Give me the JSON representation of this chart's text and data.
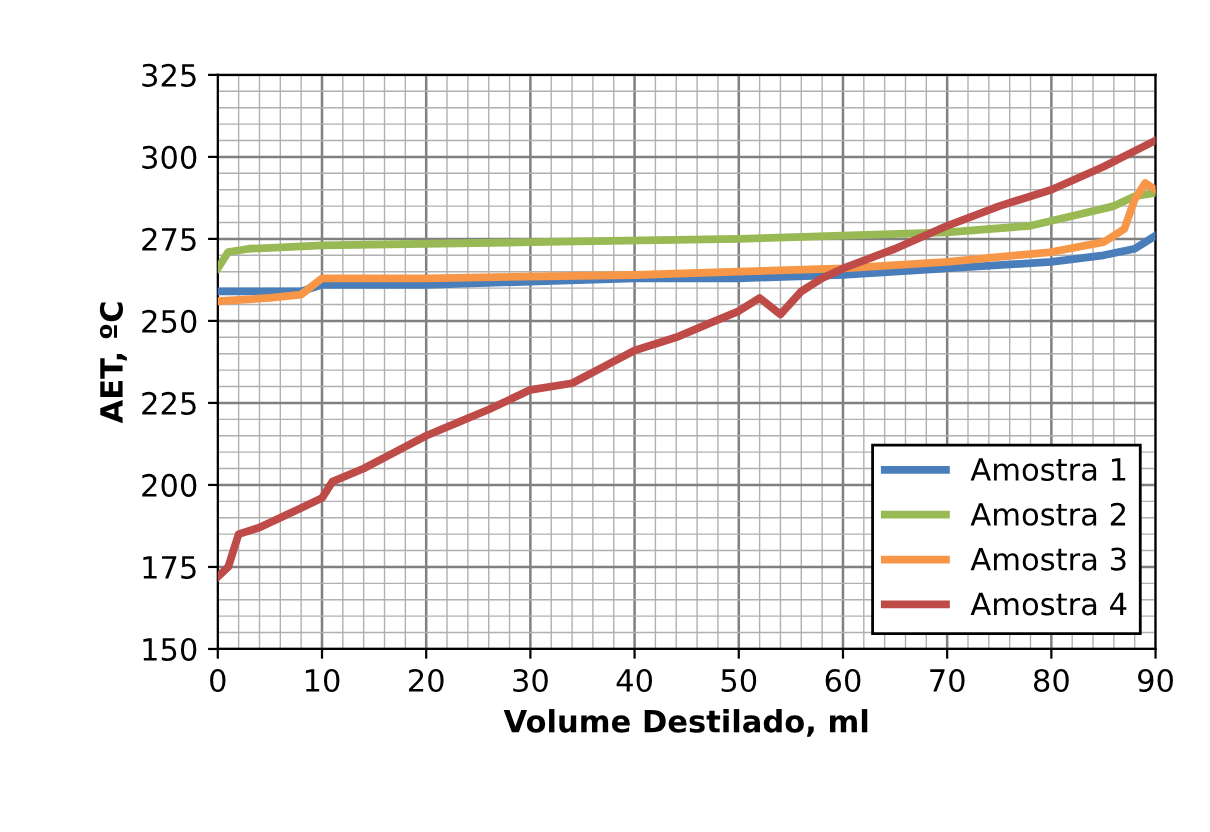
{
  "chart_data": {
    "type": "line",
    "xlabel": "Volume Destilado, ml",
    "ylabel": "AET, ºC",
    "xlim": [
      0,
      90
    ],
    "xticks": [
      0,
      10,
      20,
      30,
      40,
      50,
      60,
      70,
      80,
      90
    ],
    "ylim": [
      150,
      325
    ],
    "yticks": [
      150,
      175,
      200,
      225,
      250,
      275,
      300,
      325
    ],
    "grid": true,
    "legend": "bottom right",
    "marker": "none",
    "line_style": "solid",
    "series": [
      {
        "name": "Amostra 1",
        "color": "#4a7ebb",
        "x": [
          0,
          8,
          10,
          20,
          30,
          40,
          50,
          60,
          70,
          80,
          85,
          88,
          90
        ],
        "values": [
          259,
          259,
          261,
          261,
          262,
          263,
          263,
          264,
          266,
          268,
          270,
          272,
          276
        ]
      },
      {
        "name": "Amostra 2",
        "color": "#98b954",
        "x": [
          0,
          1,
          3,
          10,
          30,
          50,
          60,
          70,
          78,
          82,
          86,
          88,
          90
        ],
        "values": [
          266,
          271,
          272,
          273,
          274,
          275,
          276,
          277,
          279,
          282,
          285,
          288,
          289
        ]
      },
      {
        "name": "Amostra 3",
        "color": "#f79646",
        "x": [
          0,
          5,
          8,
          10,
          20,
          40,
          50,
          60,
          70,
          80,
          85,
          87,
          88,
          89,
          90
        ],
        "values": [
          256,
          257,
          258,
          263,
          263,
          264,
          265,
          266,
          268,
          271,
          274,
          278,
          287,
          292,
          290
        ]
      },
      {
        "name": "Amostra 4",
        "color": "#be4b48",
        "x": [
          0,
          1,
          2,
          4,
          6,
          8,
          10,
          11,
          14,
          17,
          20,
          23,
          26,
          30,
          34,
          37,
          40,
          44,
          47,
          50,
          52,
          54,
          56,
          58,
          60,
          65,
          70,
          75,
          80,
          85,
          90
        ],
        "values": [
          172,
          175,
          185,
          187,
          190,
          193,
          196,
          201,
          205,
          210,
          215,
          219,
          223,
          229,
          231,
          236,
          241,
          245,
          249,
          253,
          257,
          252,
          259,
          263,
          266,
          272,
          279,
          285,
          290,
          297,
          305
        ]
      }
    ]
  }
}
